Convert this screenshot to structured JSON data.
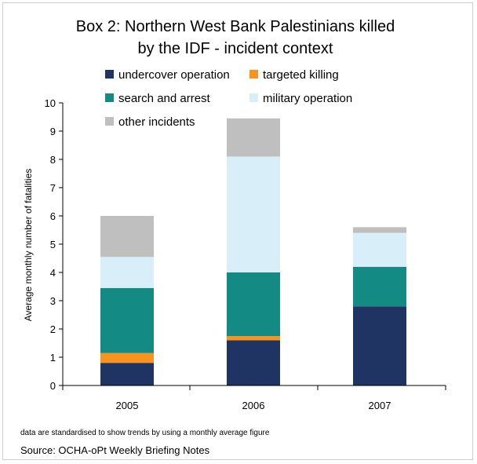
{
  "chart_data": {
    "type": "bar",
    "stacked": true,
    "title_lines": [
      "Box 2: Northern West Bank Palestinians killed",
      "by the IDF - incident context"
    ],
    "xlabel": "",
    "ylabel": "Average monthly number of fatalities",
    "categories": [
      "2005",
      "2006",
      "2007"
    ],
    "ylim": [
      0,
      10
    ],
    "yticks": [
      0,
      1,
      2,
      3,
      4,
      5,
      6,
      7,
      8,
      9,
      10
    ],
    "grid": false,
    "legend_position": "top",
    "series": [
      {
        "name": "undercover operation",
        "color": "#1f3462",
        "values": [
          0.8,
          1.6,
          2.8
        ]
      },
      {
        "name": "targeted killing",
        "color": "#f7941d",
        "values": [
          0.35,
          0.15,
          0
        ]
      },
      {
        "name": "search and arrest",
        "color": "#138a83",
        "values": [
          2.3,
          2.25,
          1.4
        ]
      },
      {
        "name": "military operation",
        "color": "#d8eef8",
        "values": [
          1.1,
          4.1,
          1.2
        ]
      },
      {
        "name": "other incidents",
        "color": "#bfbfbf",
        "values": [
          1.45,
          1.35,
          0.2
        ]
      }
    ]
  },
  "footer": {
    "note": "data are standardised to show trends by using a monthly average figure",
    "source": "Source: OCHA-oPt Weekly Briefing Notes"
  }
}
